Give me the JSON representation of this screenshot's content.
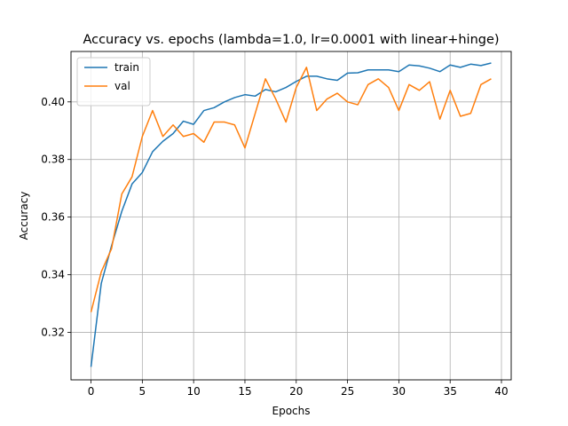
{
  "chart_data": {
    "type": "line",
    "title": "Accuracy vs. epochs (lambda=1.0, lr=0.0001 with linear+hinge)",
    "xlabel": "Epochs",
    "ylabel": "Accuracy",
    "xlim": [
      -1.95,
      40.95
    ],
    "ylim": [
      0.3035,
      0.4175
    ],
    "xticks": [
      0,
      5,
      10,
      15,
      20,
      25,
      30,
      35,
      40
    ],
    "yticks": [
      0.32,
      0.34,
      0.36,
      0.38,
      0.4
    ],
    "ytick_labels": [
      "0.32",
      "0.34",
      "0.36",
      "0.38",
      "0.40"
    ],
    "grid": true,
    "legend_position": "top-left",
    "x": [
      0,
      1,
      2,
      3,
      4,
      5,
      6,
      7,
      8,
      9,
      10,
      11,
      12,
      13,
      14,
      15,
      16,
      17,
      18,
      19,
      20,
      21,
      22,
      23,
      24,
      25,
      26,
      27,
      28,
      29,
      30,
      31,
      32,
      33,
      34,
      35,
      36,
      37,
      38,
      39
    ],
    "series": [
      {
        "name": "train",
        "color": "#1f77b4",
        "values": [
          0.308,
          0.337,
          0.35,
          0.362,
          0.3715,
          0.3755,
          0.3827,
          0.3863,
          0.389,
          0.3933,
          0.3922,
          0.397,
          0.398,
          0.4,
          0.4015,
          0.4025,
          0.402,
          0.4043,
          0.4035,
          0.405,
          0.4071,
          0.4089,
          0.4089,
          0.408,
          0.4075,
          0.41,
          0.4101,
          0.4111,
          0.4111,
          0.4111,
          0.4105,
          0.4128,
          0.4125,
          0.4117,
          0.4105,
          0.4128,
          0.412,
          0.4131,
          0.4126,
          0.4135
        ]
      },
      {
        "name": "val",
        "color": "#ff7f0e",
        "values": [
          0.327,
          0.341,
          0.349,
          0.368,
          0.374,
          0.388,
          0.397,
          0.388,
          0.392,
          0.388,
          0.389,
          0.386,
          0.393,
          0.393,
          0.392,
          0.384,
          0.396,
          0.408,
          0.401,
          0.393,
          0.405,
          0.412,
          0.397,
          0.401,
          0.403,
          0.4,
          0.399,
          0.406,
          0.408,
          0.405,
          0.397,
          0.406,
          0.404,
          0.407,
          0.394,
          0.404,
          0.395,
          0.396,
          0.406,
          0.408
        ]
      }
    ]
  }
}
